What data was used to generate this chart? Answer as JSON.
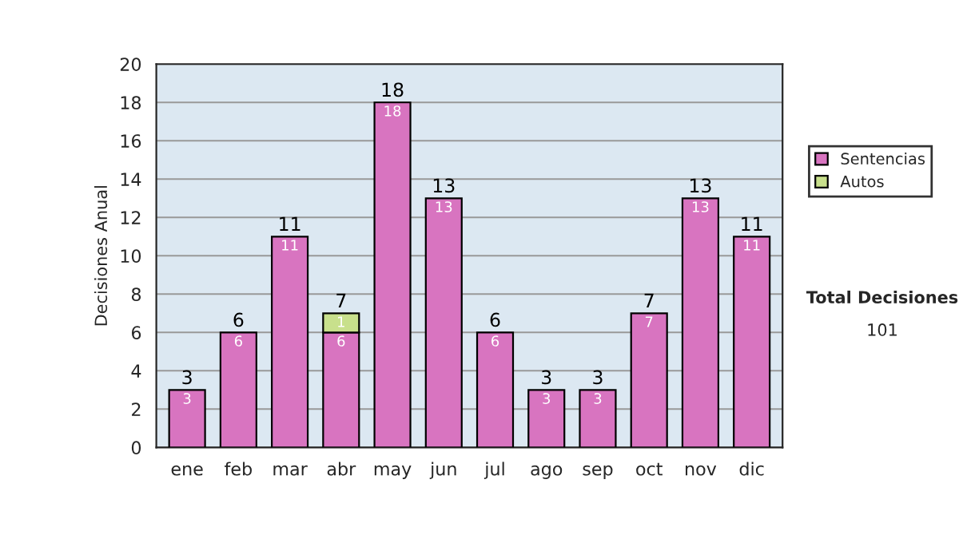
{
  "chart_data": {
    "type": "bar",
    "stacked": true,
    "ylabel": "Decisiones Anual",
    "categories": [
      "ene",
      "feb",
      "mar",
      "abr",
      "may",
      "jun",
      "jul",
      "ago",
      "sep",
      "oct",
      "nov",
      "dic"
    ],
    "series": [
      {
        "name": "Sentencias",
        "color": "#d874c0",
        "values": [
          3,
          6,
          11,
          6,
          18,
          13,
          6,
          3,
          3,
          7,
          13,
          11
        ]
      },
      {
        "name": "Autos",
        "color": "#c8e08c",
        "values": [
          null,
          null,
          null,
          1,
          null,
          null,
          null,
          null,
          null,
          null,
          null,
          null
        ]
      }
    ],
    "data_labels": true,
    "totals": [
      "3",
      "6",
      "11",
      "7",
      "18",
      "13",
      "6",
      "3",
      "3",
      "7",
      "13",
      "11"
    ],
    "ylim": [
      0,
      20
    ],
    "yticks": [
      0,
      2,
      4,
      6,
      8,
      10,
      12,
      14,
      16,
      18,
      20
    ],
    "grid": "y",
    "legend": "right",
    "annotations": [
      "Total Decisiones",
      "101"
    ]
  }
}
